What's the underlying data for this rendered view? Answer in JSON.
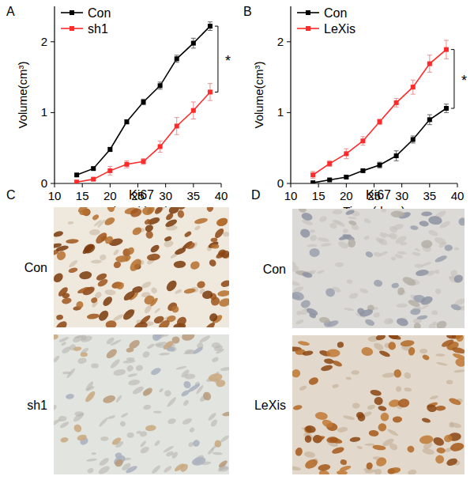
{
  "chart_data": [
    {
      "type": "line",
      "title": "A",
      "x_label": "Time (days)",
      "y_label": "Volume(cm³)",
      "x": [
        14,
        17,
        20,
        23,
        26,
        29,
        32,
        35,
        38
      ],
      "xlim": [
        10,
        40
      ],
      "xticks": [
        10,
        15,
        20,
        25,
        30,
        35,
        40
      ],
      "ylim": [
        0,
        2.5
      ],
      "yticks": [
        0,
        1,
        2
      ],
      "grid": false,
      "legend": "upper left",
      "marker": "square",
      "series": [
        {
          "name": "Con",
          "color": "#000000",
          "values": [
            0.12,
            0.21,
            0.48,
            0.87,
            1.15,
            1.38,
            1.76,
            1.98,
            2.22
          ],
          "errors": [
            0.02,
            0.02,
            0.03,
            0.03,
            0.04,
            0.05,
            0.05,
            0.07,
            0.06
          ]
        },
        {
          "name": "sh1",
          "color": "#ff2a2a",
          "values": [
            0.02,
            0.06,
            0.18,
            0.27,
            0.31,
            0.52,
            0.81,
            1.03,
            1.29
          ],
          "errors": [
            0.02,
            0.02,
            0.06,
            0.05,
            0.04,
            0.08,
            0.12,
            0.12,
            0.12
          ]
        }
      ],
      "annotations": [
        {
          "text": "*"
        }
      ]
    },
    {
      "type": "line",
      "title": "B",
      "x_label": "Time (days)",
      "y_label": "Volume(cm³)",
      "x": [
        14,
        17,
        20,
        23,
        26,
        29,
        32,
        35,
        38
      ],
      "xlim": [
        10,
        40
      ],
      "xticks": [
        10,
        15,
        20,
        25,
        30,
        35,
        40
      ],
      "ylim": [
        0,
        2.5
      ],
      "yticks": [
        0,
        1,
        2
      ],
      "grid": false,
      "legend": "upper left",
      "marker": "square",
      "series": [
        {
          "name": "Con",
          "color": "#000000",
          "values": [
            0.01,
            0.05,
            0.09,
            0.18,
            0.26,
            0.39,
            0.62,
            0.9,
            1.06
          ],
          "errors": [
            0.01,
            0.01,
            0.02,
            0.02,
            0.04,
            0.07,
            0.05,
            0.07,
            0.06
          ]
        },
        {
          "name": "LeXis",
          "color": "#ff2a2a",
          "values": [
            0.12,
            0.28,
            0.42,
            0.6,
            0.87,
            1.14,
            1.36,
            1.69,
            1.89
          ],
          "errors": [
            0.05,
            0.04,
            0.07,
            0.06,
            0.04,
            0.06,
            0.1,
            0.12,
            0.13
          ]
        }
      ],
      "annotations": [
        {
          "text": "*"
        }
      ]
    }
  ],
  "images": [
    {
      "label": "C",
      "title": "Ki67",
      "rows": [
        "Con",
        "sh1"
      ]
    },
    {
      "label": "D",
      "title": "Ki67",
      "rows": [
        "Con",
        "LeXis"
      ]
    }
  ]
}
